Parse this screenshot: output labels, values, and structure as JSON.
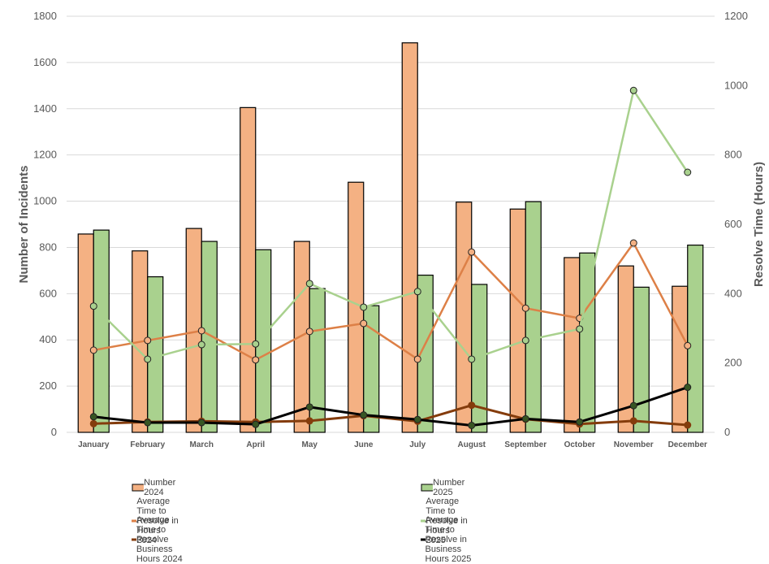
{
  "chart_data": {
    "type": "bar",
    "title": "",
    "categories": [
      "January",
      "February",
      "March",
      "April",
      "May",
      "June",
      "July",
      "August",
      "September",
      "October",
      "November",
      "December"
    ],
    "ylabel": "Number of Incidents",
    "ylabel_right": "Resolve Time (Hours)",
    "ylim": [
      0,
      1800
    ],
    "ylim_right": [
      0,
      1200
    ],
    "yticks": [
      0,
      200,
      400,
      600,
      800,
      1000,
      1200,
      1400,
      1600,
      1800
    ],
    "yticks_right": [
      0,
      200,
      400,
      600,
      800,
      1000,
      1200
    ],
    "grid": true,
    "legend_position": "bottom",
    "series": [
      {
        "name": "Number 2024",
        "type": "bar",
        "axis": "left",
        "color": "#F4B183",
        "values": [
          858,
          785,
          882,
          1405,
          826,
          1082,
          1685,
          996,
          966,
          756,
          720,
          632
        ]
      },
      {
        "name": "Number 2025",
        "type": "bar",
        "axis": "left",
        "color": "#A9D18E",
        "values": [
          875,
          673,
          826,
          790,
          622,
          548,
          680,
          640,
          998,
          776,
          628,
          810
        ]
      },
      {
        "name": "Average Time to Resolve in Hours 2024",
        "type": "line",
        "axis": "right",
        "color": "#DD8047",
        "marker_fill": "#F4B183",
        "values": [
          237,
          265,
          293,
          209,
          291,
          314,
          211,
          520,
          358,
          329,
          546,
          250
        ]
      },
      {
        "name": "Average Time to Resolve in Hours 2025",
        "type": "line",
        "axis": "right",
        "color": "#A9D18E",
        "marker_fill": "#A9D18E",
        "values": [
          364,
          211,
          253,
          255,
          429,
          361,
          406,
          211,
          265,
          298,
          986,
          750
        ]
      },
      {
        "name": "Average Time to Resolve Business Hours 2024",
        "type": "line",
        "axis": "right",
        "color": "#843C0C",
        "marker_fill": "#843C0C",
        "values": [
          25,
          30,
          32,
          30,
          33,
          48,
          32,
          78,
          38,
          24,
          33,
          21
        ]
      },
      {
        "name": "Average Time to Resolve in Business Hours 2025",
        "type": "line",
        "axis": "right",
        "color": "#000000",
        "marker_fill": "#375623",
        "values": [
          45,
          28,
          28,
          23,
          73,
          50,
          37,
          20,
          39,
          30,
          77,
          130
        ]
      }
    ]
  }
}
